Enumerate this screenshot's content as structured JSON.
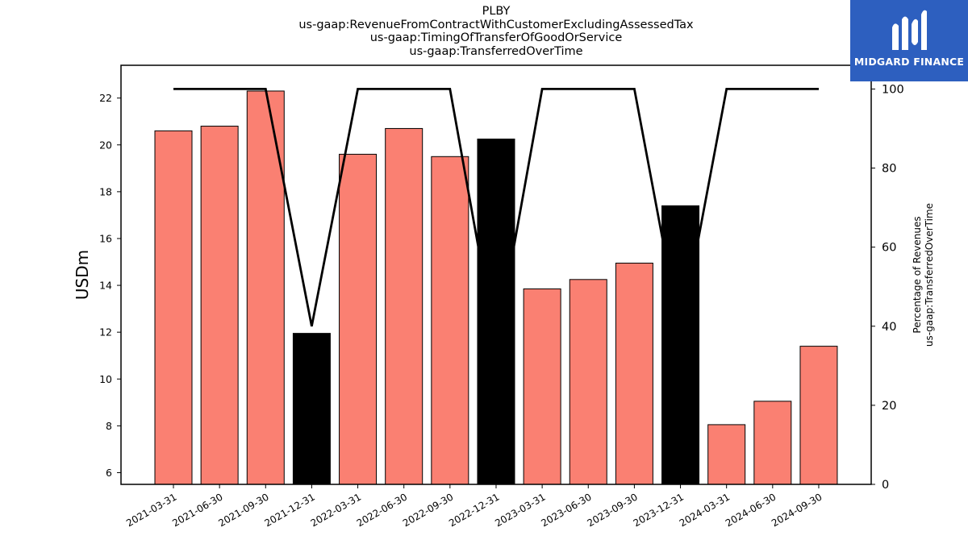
{
  "chart_data": {
    "type": "bar",
    "title_lines": [
      "PLBY",
      "us-gaap:RevenueFromContractWithCustomerExcludingAssessedTax",
      "us-gaap:TimingOfTransferOfGoodOrService",
      "us-gaap:TransferredOverTime"
    ],
    "categories": [
      "2021-03-31",
      "2021-06-30",
      "2021-09-30",
      "2021-12-31",
      "2022-03-31",
      "2022-06-30",
      "2022-09-30",
      "2022-12-31",
      "2023-03-31",
      "2023-06-30",
      "2023-09-30",
      "2023-12-31",
      "2024-03-31",
      "2024-06-30",
      "2024-09-30"
    ],
    "values": [
      20.6,
      20.8,
      22.3,
      11.95,
      19.6,
      20.7,
      19.5,
      20.25,
      13.85,
      14.25,
      14.95,
      17.4,
      8.05,
      9.05,
      11.4
    ],
    "bar_colors": [
      "#fa8072",
      "#fa8072",
      "#fa8072",
      "#000000",
      "#fa8072",
      "#fa8072",
      "#fa8072",
      "#000000",
      "#fa8072",
      "#fa8072",
      "#fa8072",
      "#000000",
      "#fa8072",
      "#fa8072",
      "#fa8072"
    ],
    "ylabel": "USDm",
    "ylim": [
      5.5,
      23.4
    ],
    "yticks": [
      6,
      8,
      10,
      12,
      14,
      16,
      18,
      20,
      22
    ],
    "secondary_axis": {
      "label_lines": [
        "Percentage of Revenues",
        "us-gaap:TransferredOverTime"
      ],
      "ylim": [
        0,
        106
      ],
      "yticks": [
        0,
        20,
        40,
        60,
        80,
        100
      ],
      "line_values": [
        100,
        100,
        100,
        40,
        100,
        100,
        100,
        35,
        100,
        100,
        100,
        38,
        100,
        100,
        100
      ],
      "line_color": "#000000"
    },
    "grid": false
  },
  "logo": {
    "text": "MIDGARD FINANCE"
  }
}
